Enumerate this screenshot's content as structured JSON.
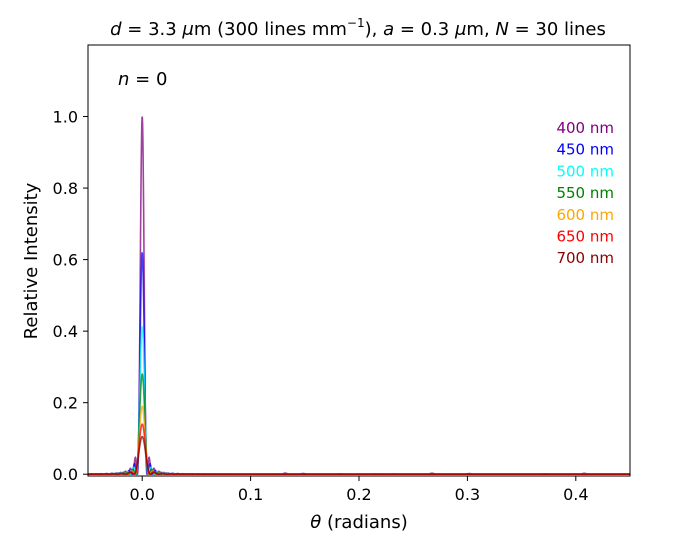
{
  "chart_data": {
    "type": "line",
    "title": {
      "d_symbol": "d",
      "d_value": " = 3.3 ",
      "mu1": "μ",
      "unit1": "m (300 lines mm",
      "exp": "−1",
      "close": "), ",
      "a_symbol": "a",
      "a_value": " = 0.3 ",
      "mu2": "μ",
      "unit2": "m, ",
      "N_symbol": "N",
      "N_value": " = 30 lines"
    },
    "annotation": {
      "n_symbol": "n",
      "n_value": " = 0"
    },
    "xlabel": {
      "symbol": "θ",
      "text": " (radians)"
    },
    "ylabel": "Relative Intensity",
    "xlim": [
      -0.05,
      0.45
    ],
    "ylim": [
      -0.005,
      1.2
    ],
    "xticks": [
      0.0,
      0.1,
      0.2,
      0.3,
      0.4
    ],
    "xtick_labels": [
      "0.0",
      "0.1",
      "0.2",
      "0.3",
      "0.4"
    ],
    "yticks": [
      0.0,
      0.2,
      0.4,
      0.6,
      0.8,
      1.0
    ],
    "ytick_labels": [
      "0.0",
      "0.2",
      "0.4",
      "0.6",
      "0.8",
      "1.0"
    ],
    "grid": false,
    "legend_placement": "right",
    "series": [
      {
        "name": "400 nm",
        "color": "#800080",
        "peak": 1.0
      },
      {
        "name": "450 nm",
        "color": "#0000ff",
        "peak": 0.62
      },
      {
        "name": "500 nm",
        "color": "#00ffff",
        "peak": 0.41
      },
      {
        "name": "550 nm",
        "color": "#008000",
        "peak": 0.28
      },
      {
        "name": "600 nm",
        "color": "#ffa500",
        "peak": 0.19
      },
      {
        "name": "650 nm",
        "color": "#ff0000",
        "peak": 0.14
      },
      {
        "name": "700 nm",
        "color": "#8b0000",
        "peak": 0.105
      }
    ]
  }
}
